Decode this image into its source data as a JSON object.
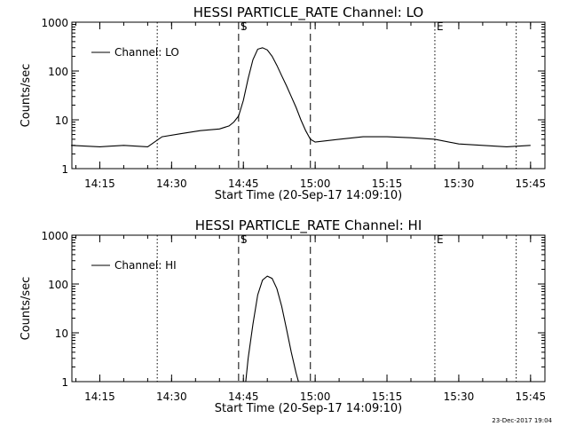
{
  "footer_date": "23-Dec-2017 19:04",
  "chart_data": [
    {
      "type": "line",
      "title": "HESSI PARTICLE_RATE Channel: LO",
      "xlabel": "Start Time (20-Sep-17 14:09:10)",
      "ylabel": "Counts/sec",
      "yscale": "log",
      "ylim": [
        1,
        1000
      ],
      "xlim": [
        "14:09:10",
        "15:48:00"
      ],
      "x_tick_labels": [
        "14:15",
        "14:30",
        "14:45",
        "15:00",
        "15:15",
        "15:30",
        "15:45"
      ],
      "y_tick_labels": [
        "1",
        "10",
        "100",
        "1000"
      ],
      "marker_labels": {
        "start": "S",
        "end": "E"
      },
      "dashed_lines": [
        "14:44:00",
        "14:59:00"
      ],
      "dotted_lines": [
        "14:27:00",
        "15:25:00",
        "15:42:00"
      ],
      "legend": {
        "label": "Channel: LO",
        "position": "top-left"
      },
      "series": [
        {
          "name": "Channel: LO",
          "x": [
            "14:09",
            "14:15",
            "14:20",
            "14:25",
            "14:28",
            "14:32",
            "14:36",
            "14:40",
            "14:42",
            "14:43",
            "14:44",
            "14:45",
            "14:46",
            "14:47",
            "14:48",
            "14:49",
            "14:50",
            "14:51",
            "14:52",
            "14:53",
            "14:54",
            "14:55",
            "14:56",
            "14:57",
            "14:58",
            "14:59",
            "15:00",
            "15:05",
            "15:10",
            "15:15",
            "15:20",
            "15:25",
            "15:30",
            "15:35",
            "15:40",
            "15:45"
          ],
          "y": [
            3,
            2.8,
            3,
            2.8,
            4.5,
            5.2,
            6,
            6.5,
            7.5,
            9,
            12,
            25,
            70,
            170,
            280,
            300,
            270,
            200,
            130,
            80,
            50,
            30,
            18,
            10,
            6,
            4,
            3.5,
            4,
            4.5,
            4.5,
            4.3,
            4,
            3.2,
            3,
            2.8,
            3
          ]
        }
      ]
    },
    {
      "type": "line",
      "title": "HESSI PARTICLE_RATE Channel: HI",
      "xlabel": "Start Time (20-Sep-17 14:09:10)",
      "ylabel": "Counts/sec",
      "yscale": "log",
      "ylim": [
        1,
        1000
      ],
      "xlim": [
        "14:09:10",
        "15:48:00"
      ],
      "x_tick_labels": [
        "14:15",
        "14:30",
        "14:45",
        "15:00",
        "15:15",
        "15:30",
        "15:45"
      ],
      "y_tick_labels": [
        "1",
        "10",
        "100",
        "1000"
      ],
      "marker_labels": {
        "start": "S",
        "end": "E"
      },
      "dashed_lines": [
        "14:44:00",
        "14:59:00"
      ],
      "dotted_lines": [
        "14:27:00",
        "15:25:00",
        "15:42:00"
      ],
      "legend": {
        "label": "Channel: HI",
        "position": "top-left"
      },
      "series": [
        {
          "name": "Channel: HI",
          "x": [
            "14:45:30",
            "14:46",
            "14:47",
            "14:48",
            "14:49",
            "14:50",
            "14:51",
            "14:52",
            "14:53",
            "14:54",
            "14:55",
            "14:56",
            "14:56:30"
          ],
          "y": [
            1,
            3,
            15,
            60,
            120,
            145,
            130,
            80,
            35,
            12,
            4,
            1.5,
            1
          ]
        }
      ]
    }
  ]
}
